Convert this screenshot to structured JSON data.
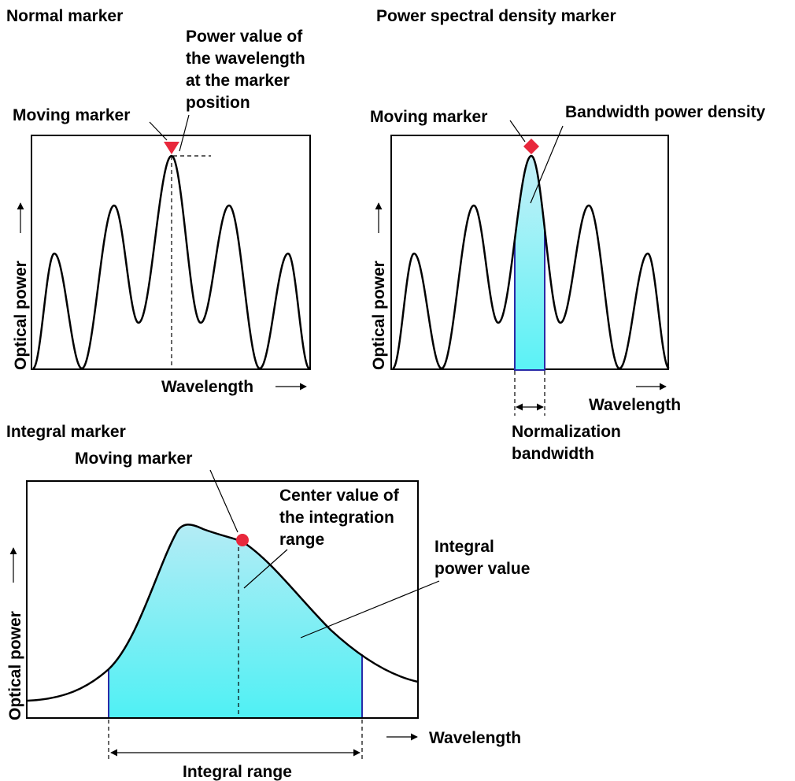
{
  "panels": {
    "normal": {
      "title": "Normal marker",
      "moving_marker": "Moving marker",
      "power_value": [
        "Power value of",
        "the wavelength",
        "at the marker",
        "position"
      ],
      "y_axis": "Optical power",
      "x_axis": "Wavelength"
    },
    "psd": {
      "title": "Power spectral density marker",
      "moving_marker": "Moving marker",
      "bandwidth_power_density": "Bandwidth power density",
      "y_axis": "Optical power",
      "x_axis": "Wavelength",
      "normalization_bandwidth": [
        "Normalization",
        "bandwidth"
      ]
    },
    "integral": {
      "title": "Integral marker",
      "moving_marker": "Moving marker",
      "center_value": [
        "Center value of",
        "the integration",
        "range"
      ],
      "integral_power": [
        "Integral",
        "power value"
      ],
      "y_axis": "Optical power",
      "x_axis": "Wavelength",
      "integral_range": "Integral range"
    }
  },
  "colors": {
    "marker": "#e8283c",
    "fill_top": "#bdeef6",
    "fill_bottom": "#5ef0f5",
    "fill_edge": "#2a2aa8",
    "line": "#000000"
  }
}
